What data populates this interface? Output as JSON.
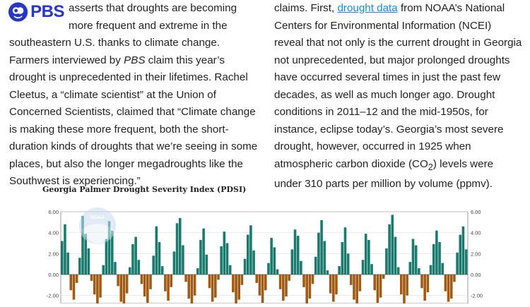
{
  "logo": {
    "text": "PBS",
    "icon": "pbs-head-icon"
  },
  "left_column": {
    "p1": "asserts that droughts are becoming more frequent and extreme in the southeastern U.S. thanks to climate change. Farmers interviewed by ",
    "p1_em": "PBS",
    "p1_rest": " claim this year’s drought is unprecedented in their lifetimes. Rachel Cleetus, a “climate scientist” at the Union of Concerned Scientists, claimed that “Climate change is making these more frequent, both the short-duration kinds of droughts that we’re seeing in some places, but also the longer megadroughts like the Southwest is experiencing.”"
  },
  "right_column": {
    "pre": "claims. First, ",
    "link": "drought data",
    "post1": " from NOAA’s National Centers for Environmental Information (NCEI) reveal that not only is the current drought in Georgia not unprecedented, but major prolonged droughts have occurred several times in just the past few decades, as well as much longer ago. Drought conditions in 2011–12 and the mid-1950s, for instance, eclipse today’s. Georgia’s most severe drought, however, occurred in 1925 when atmospheric carbon dioxide (CO",
    "sub": "2",
    "post2": ") levels were under 310 parts per million by volume (ppmv)."
  },
  "chart_data": {
    "type": "bar",
    "title": "Georgia Palmer Drought Severity Index (PDSI)",
    "watermark": "NOAA",
    "y_ticks": [
      "6.00",
      "4.00",
      "2.00",
      "0.00",
      "-2.00"
    ],
    "ylim": [
      -2.9,
      6.0
    ],
    "positive_color": "#1a7a6e",
    "negative_color": "#a15a14",
    "series_values": [
      3.2,
      4.8,
      2.1,
      -1.5,
      -2.4,
      -0.8,
      1.6,
      5.6,
      3.9,
      2.5,
      -0.6,
      -1.9,
      -2.8,
      -2.2,
      0.9,
      3.4,
      5.1,
      4.2,
      1.2,
      -1.1,
      -2.6,
      -2.9,
      -1.8,
      0.7,
      2.9,
      3.6,
      1.4,
      -0.9,
      -2.1,
      -2.7,
      -1.4,
      1.8,
      4.6,
      3.1,
      0.8,
      -1.6,
      -2.5,
      -1.2,
      2.2,
      4.9,
      5.4,
      2.8,
      -0.7,
      -2.3,
      -2.8,
      -2.0,
      0.6,
      3.3,
      4.4,
      1.9,
      -1.3,
      -2.6,
      -2.2,
      -0.5,
      2.7,
      4.1,
      3.0,
      0.9,
      -1.7,
      -2.9,
      -2.4,
      -1.0,
      1.5,
      3.8,
      4.7,
      2.3,
      -0.8,
      -2.0,
      -2.7,
      -1.5,
      1.1,
      3.5,
      2.6,
      0.5,
      -1.4,
      -2.5,
      -2.1,
      -0.6,
      2.4,
      4.3,
      3.7,
      1.3,
      -1.2,
      -2.8,
      -2.3,
      -0.9,
      1.7,
      4.0,
      5.2,
      3.2,
      0.4,
      -1.8,
      -2.6,
      -1.9,
      0.8,
      3.1,
      4.5,
      2.0,
      -1.0,
      -2.4,
      -2.9,
      -1.6,
      1.4,
      3.9,
      3.3,
      1.0,
      -1.5,
      -2.7,
      -2.2,
      -0.4,
      2.5,
      4.8,
      5.7,
      3.6,
      0.7,
      -1.9,
      -2.8,
      -2.0,
      1.2,
      3.4,
      2.8,
      0.6,
      -1.3,
      -2.5,
      -1.7,
      0.9,
      2.9,
      4.2,
      3.1,
      1.1,
      -1.6,
      -2.6,
      -2.3,
      -0.7,
      2.1,
      3.8,
      4.6,
      2.4
    ]
  }
}
